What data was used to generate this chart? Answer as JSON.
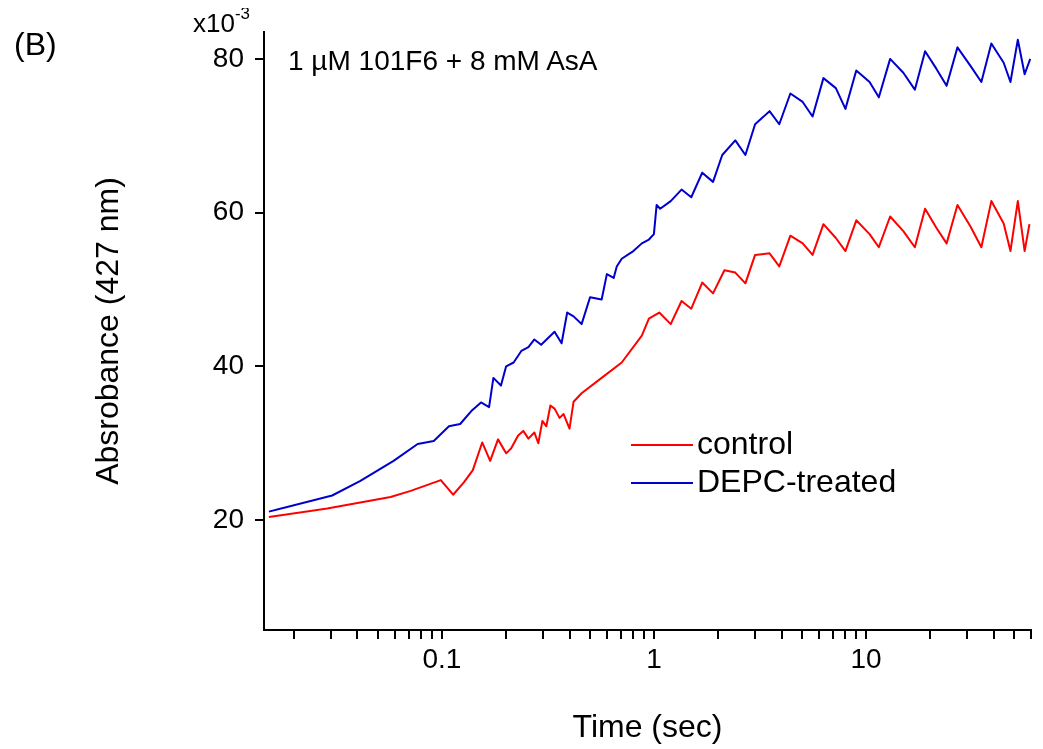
{
  "chart_data": {
    "type": "line",
    "xlabel": "Time (sec)",
    "ylabel": "Absrobance (427 nm)",
    "annotations": [
      "(B)",
      "1 µM 101F6 + 8 mM AsA",
      "x10$^{-3}$"
    ],
    "log": "x",
    "grid": false,
    "legend": "bottom right",
    "marker": "none",
    "line_style": "solid",
    "xlim": [
      0.0145,
      60
    ],
    "ylim": [
      5.7,
      83.5
    ],
    "xticks": [
      {
        "value": 0.02,
        "label": null
      },
      {
        "value": 0.03,
        "label": null
      },
      {
        "value": 0.04,
        "label": null
      },
      {
        "value": 0.05,
        "label": null
      },
      {
        "value": 0.06,
        "label": null
      },
      {
        "value": 0.07,
        "label": null
      },
      {
        "value": 0.08,
        "label": null
      },
      {
        "value": 0.09,
        "label": null
      },
      0.1,
      {
        "value": 0.2,
        "label": null
      },
      {
        "value": 0.3,
        "label": null
      },
      {
        "value": 0.4,
        "label": null
      },
      {
        "value": 0.5,
        "label": null
      },
      {
        "value": 0.6,
        "label": null
      },
      {
        "value": 0.7,
        "label": null
      },
      {
        "value": 0.8,
        "label": null
      },
      {
        "value": 0.9,
        "label": null
      },
      1,
      {
        "value": 2,
        "label": null
      },
      {
        "value": 3,
        "label": null
      },
      {
        "value": 4,
        "label": null
      },
      {
        "value": 5,
        "label": null
      },
      {
        "value": 6,
        "label": null
      },
      {
        "value": 7,
        "label": null
      },
      {
        "value": 8,
        "label": null
      },
      {
        "value": 9,
        "label": null
      },
      10,
      {
        "value": 20,
        "label": null
      },
      {
        "value": 30,
        "label": null
      },
      {
        "value": 40,
        "label": null
      },
      {
        "value": 50,
        "label": null
      },
      {
        "value": 60,
        "label": null
      }
    ],
    "yticks": [
      20,
      40,
      60,
      80
    ],
    "series": [
      {
        "name": "control",
        "color": "#ff0000",
        "x": [
          0.0153,
          0.0288,
          0.0573,
          0.0713,
          0.0989,
          0.113,
          0.127,
          0.14,
          0.155,
          0.169,
          0.184,
          0.201,
          0.212,
          0.229,
          0.242,
          0.256,
          0.273,
          0.285,
          0.298,
          0.311,
          0.325,
          0.34,
          0.359,
          0.375,
          0.4,
          0.418,
          0.456,
          0.567,
          0.705,
          0.877,
          0.947,
          1.06,
          1.2,
          1.35,
          1.5,
          1.69,
          1.9,
          2.15,
          2.42,
          2.7,
          3.0,
          3.51,
          3.9,
          4.4,
          5.03,
          5.6,
          6.3,
          7.21,
          8,
          9,
          10.4,
          11.5,
          13,
          15,
          17,
          19,
          21.5,
          24,
          27,
          31.1,
          35,
          39,
          44.6,
          48,
          52,
          56,
          59
        ],
        "values": [
          20.4,
          21.5,
          23.0,
          23.8,
          25.2,
          23.3,
          24.9,
          26.5,
          30.1,
          27.7,
          30.5,
          28.7,
          29.3,
          31.0,
          31.6,
          30.6,
          31.4,
          30.0,
          32.9,
          32.2,
          34.9,
          34.5,
          33.3,
          33.8,
          31.9,
          35.4,
          36.5,
          38.5,
          40.5,
          44,
          46.2,
          47,
          45.5,
          48.5,
          47.5,
          50.9,
          49.5,
          52.5,
          52.2,
          50.8,
          54.5,
          54.7,
          53,
          57,
          56,
          54.5,
          58.5,
          56.7,
          55,
          59,
          57.2,
          55.5,
          59.5,
          57.6,
          55.5,
          60.5,
          58,
          56,
          61,
          58.2,
          55.5,
          61.5,
          58.6,
          55,
          61.5,
          55,
          58.5
        ]
      },
      {
        "name": "DEPC-treated",
        "color": "#0000cc",
        "x": [
          0.0153,
          0.0304,
          0.0413,
          0.0592,
          0.0769,
          0.0916,
          0.108,
          0.122,
          0.139,
          0.153,
          0.167,
          0.175,
          0.19,
          0.201,
          0.218,
          0.237,
          0.256,
          0.273,
          0.294,
          0.34,
          0.367,
          0.39,
          0.418,
          0.456,
          0.5,
          0.567,
          0.6,
          0.646,
          0.668,
          0.705,
          0.8,
          0.877,
          0.947,
          1.0,
          1.03,
          1.07,
          1.2,
          1.35,
          1.5,
          1.69,
          1.9,
          2.1,
          2.42,
          2.7,
          3.0,
          3.51,
          3.9,
          4.4,
          5.03,
          5.6,
          6.3,
          7.21,
          8,
          9,
          10.4,
          11.5,
          13,
          15,
          17,
          19,
          21.5,
          24,
          27,
          31.1,
          35,
          39,
          44.6,
          48,
          52,
          56,
          59.5
        ],
        "values": [
          21.1,
          23.2,
          25.1,
          27.7,
          29.9,
          30.3,
          32.2,
          32.5,
          34.3,
          35.3,
          34.7,
          38.5,
          37.5,
          40,
          40.5,
          42,
          42.5,
          43.5,
          42.8,
          44.5,
          43,
          47,
          46.5,
          45.5,
          49,
          48.7,
          52,
          51.5,
          53,
          54,
          55,
          56,
          56.5,
          57.2,
          61,
          60.5,
          61.5,
          63,
          62,
          65.2,
          64,
          67.5,
          69.4,
          67.5,
          71.5,
          73.2,
          71.5,
          75.5,
          74.4,
          72.5,
          77.5,
          76.2,
          73.5,
          78.5,
          77,
          75,
          80,
          78.2,
          76,
          81,
          78.7,
          76.5,
          81.5,
          79.1,
          77,
          82,
          79.5,
          77,
          82.5,
          78,
          80
        ]
      }
    ]
  }
}
